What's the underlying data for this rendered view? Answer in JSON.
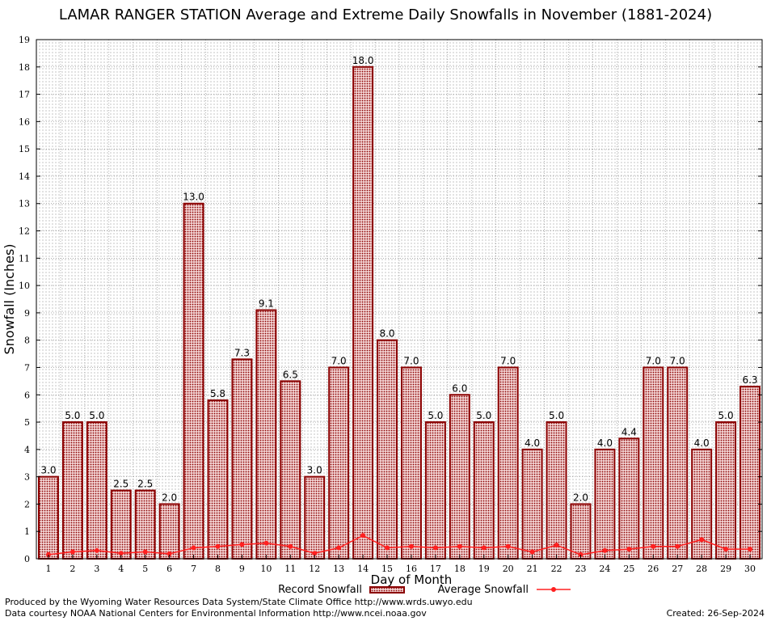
{
  "chart_data": {
    "type": "bar",
    "title": "LAMAR RANGER STATION Average and Extreme Daily Snowfalls in November (1881-2024)",
    "xlabel": "Day of Month",
    "ylabel": "Snowfall (Inches)",
    "ylim": [
      0,
      19
    ],
    "yticks": [
      "0",
      "1",
      "2",
      "3",
      "4",
      "5",
      "6",
      "7",
      "8",
      "9",
      "10",
      "11",
      "12",
      "13",
      "14",
      "15",
      "16",
      "17",
      "18",
      "19"
    ],
    "grid": true,
    "legend_position": "bottom-center",
    "categories": [
      "1",
      "2",
      "3",
      "4",
      "5",
      "6",
      "7",
      "8",
      "9",
      "10",
      "11",
      "12",
      "13",
      "14",
      "15",
      "16",
      "17",
      "18",
      "19",
      "20",
      "21",
      "22",
      "23",
      "24",
      "25",
      "26",
      "27",
      "28",
      "29",
      "30"
    ],
    "series": [
      {
        "name": "Record Snowfall",
        "type": "bar",
        "color": "#a00000",
        "values": [
          3.0,
          5.0,
          5.0,
          2.5,
          2.5,
          2.0,
          13.0,
          5.8,
          7.3,
          9.1,
          6.5,
          3.0,
          7.0,
          18.0,
          8.0,
          7.0,
          5.0,
          6.0,
          5.0,
          7.0,
          4.0,
          5.0,
          2.0,
          4.0,
          4.4,
          7.0,
          7.0,
          4.0,
          5.0,
          6.3
        ],
        "labels": [
          "3.0",
          "5.0",
          "5.0",
          "2.5",
          "2.5",
          "2.0",
          "13.0",
          "5.8",
          "7.3",
          "9.1",
          "6.5",
          "3.0",
          "7.0",
          "18.0",
          "8.0",
          "7.0",
          "5.0",
          "6.0",
          "5.0",
          "7.0",
          "4.0",
          "5.0",
          "2.0",
          "4.0",
          "4.4",
          "7.0",
          "7.0",
          "4.0",
          "5.0",
          "6.3"
        ]
      },
      {
        "name": "Average Snowfall",
        "type": "line",
        "color": "#ff2020",
        "values": [
          0.15,
          0.25,
          0.3,
          0.2,
          0.25,
          0.18,
          0.4,
          0.45,
          0.52,
          0.57,
          0.45,
          0.2,
          0.4,
          0.85,
          0.4,
          0.45,
          0.4,
          0.45,
          0.4,
          0.45,
          0.25,
          0.5,
          0.15,
          0.3,
          0.35,
          0.45,
          0.45,
          0.7,
          0.35,
          0.35
        ]
      }
    ]
  },
  "footer": {
    "produced_by": "Produced by the Wyoming Water Resources Data System/State Climate Office http://www.wrds.uwyo.edu",
    "courtesy": "Data courtesy NOAA National Centers for Environmental Information http://www.ncei.noaa.gov",
    "created": "Created: 26-Sep-2024"
  }
}
